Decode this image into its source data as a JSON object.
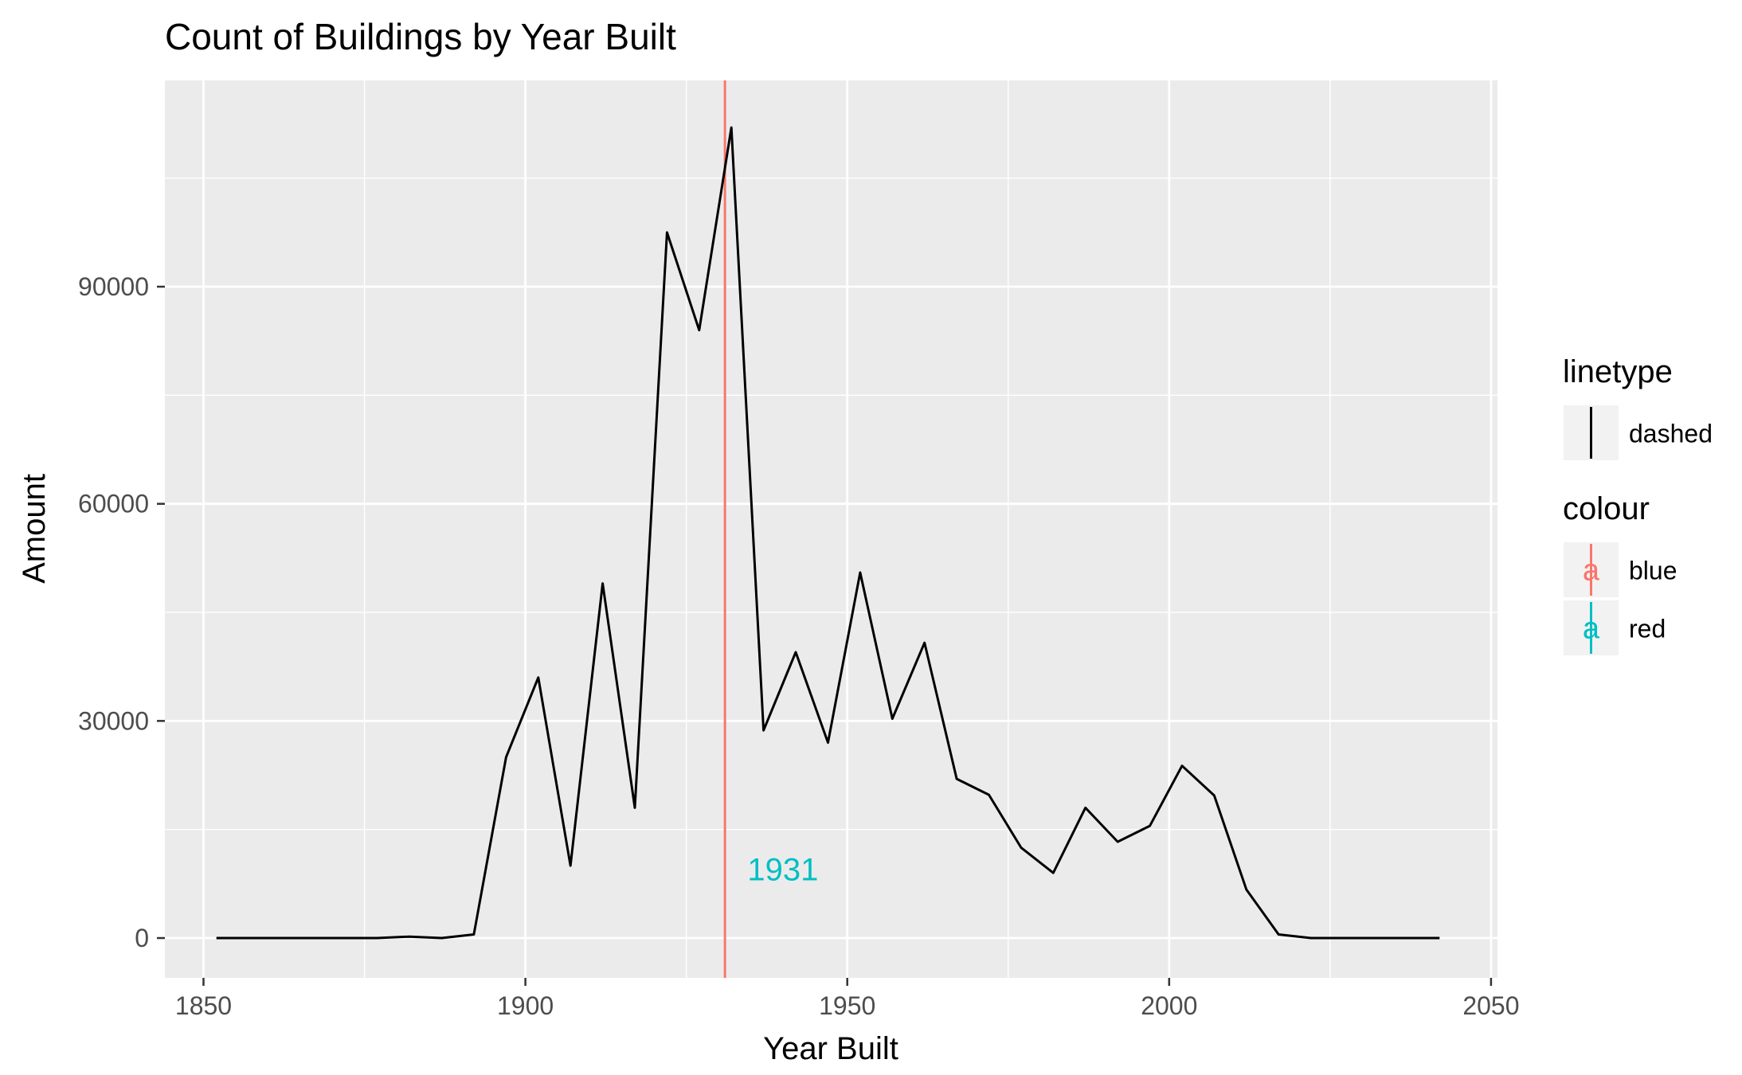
{
  "chart_data": {
    "type": "line",
    "title": "Count of Buildings by Year Built",
    "xlabel": "Year Built",
    "ylabel": "Amount",
    "xlim": [
      1844,
      2051
    ],
    "ylim": [
      -5500,
      118500
    ],
    "x_ticks": [
      1850,
      1900,
      1950,
      2000,
      2050
    ],
    "x_tick_labels": [
      "1850",
      "1900",
      "1950",
      "2000",
      "2050"
    ],
    "y_ticks": [
      0,
      30000,
      60000,
      90000
    ],
    "y_tick_labels": [
      "0",
      "30000",
      "60000",
      "90000"
    ],
    "grid": true,
    "series": [
      {
        "name": "",
        "color": "#000000",
        "x": [
          1852,
          1857,
          1862,
          1867,
          1872,
          1877,
          1882,
          1887,
          1892,
          1897,
          1902,
          1907,
          1912,
          1917,
          1922,
          1927,
          1932,
          1937,
          1942,
          1947,
          1952,
          1957,
          1962,
          1967,
          1972,
          1977,
          1982,
          1987,
          1992,
          1997,
          2002,
          2007,
          2012,
          2017,
          2022,
          2027,
          2032,
          2037,
          2042
        ],
        "y": [
          0,
          0,
          0,
          0,
          0,
          0,
          200,
          0,
          500,
          25000,
          36000,
          10000,
          49000,
          18000,
          97500,
          84000,
          112000,
          28700,
          39500,
          27000,
          50500,
          30300,
          40800,
          22000,
          19800,
          12500,
          9000,
          18000,
          13300,
          15500,
          23800,
          19700,
          6700,
          500,
          0,
          0,
          0,
          0,
          0
        ]
      }
    ],
    "vline": {
      "x": 1931,
      "color": "#F8766D"
    },
    "annotation": {
      "text": "1931",
      "x": 1940,
      "y": 9500,
      "color": "#00BFC4"
    },
    "legend": {
      "position": "right",
      "groups": [
        {
          "title": "linetype",
          "items": [
            {
              "label": "dashed",
              "color": "#000000",
              "glyph": ""
            }
          ]
        },
        {
          "title": "colour",
          "items": [
            {
              "label": "blue",
              "color": "#F8766D",
              "glyph": "a"
            },
            {
              "label": "red",
              "color": "#00BFC4",
              "glyph": "a"
            }
          ]
        }
      ]
    },
    "colors": {
      "panel": "#EBEBEB",
      "grid": "#FFFFFF",
      "text": "#4D4D4D"
    }
  }
}
